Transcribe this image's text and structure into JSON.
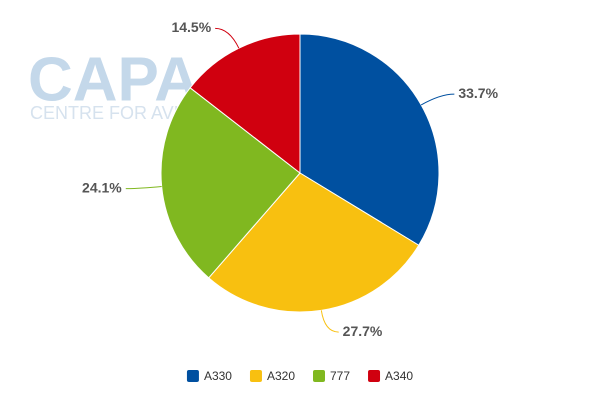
{
  "chart_data": {
    "type": "pie",
    "watermark": "CAPA",
    "watermark_subtitle": "CENTRE FOR AVIATION",
    "categories": [
      "A330",
      "A320",
      "777",
      "A340"
    ],
    "values": [
      33.7,
      27.7,
      24.1,
      14.5
    ],
    "value_labels": [
      "33.7%",
      "27.7%",
      "24.1%",
      "14.5%"
    ],
    "colors": [
      "#0050a0",
      "#f8c010",
      "#80b820",
      "#d0000f"
    ],
    "legend": "bottom"
  }
}
